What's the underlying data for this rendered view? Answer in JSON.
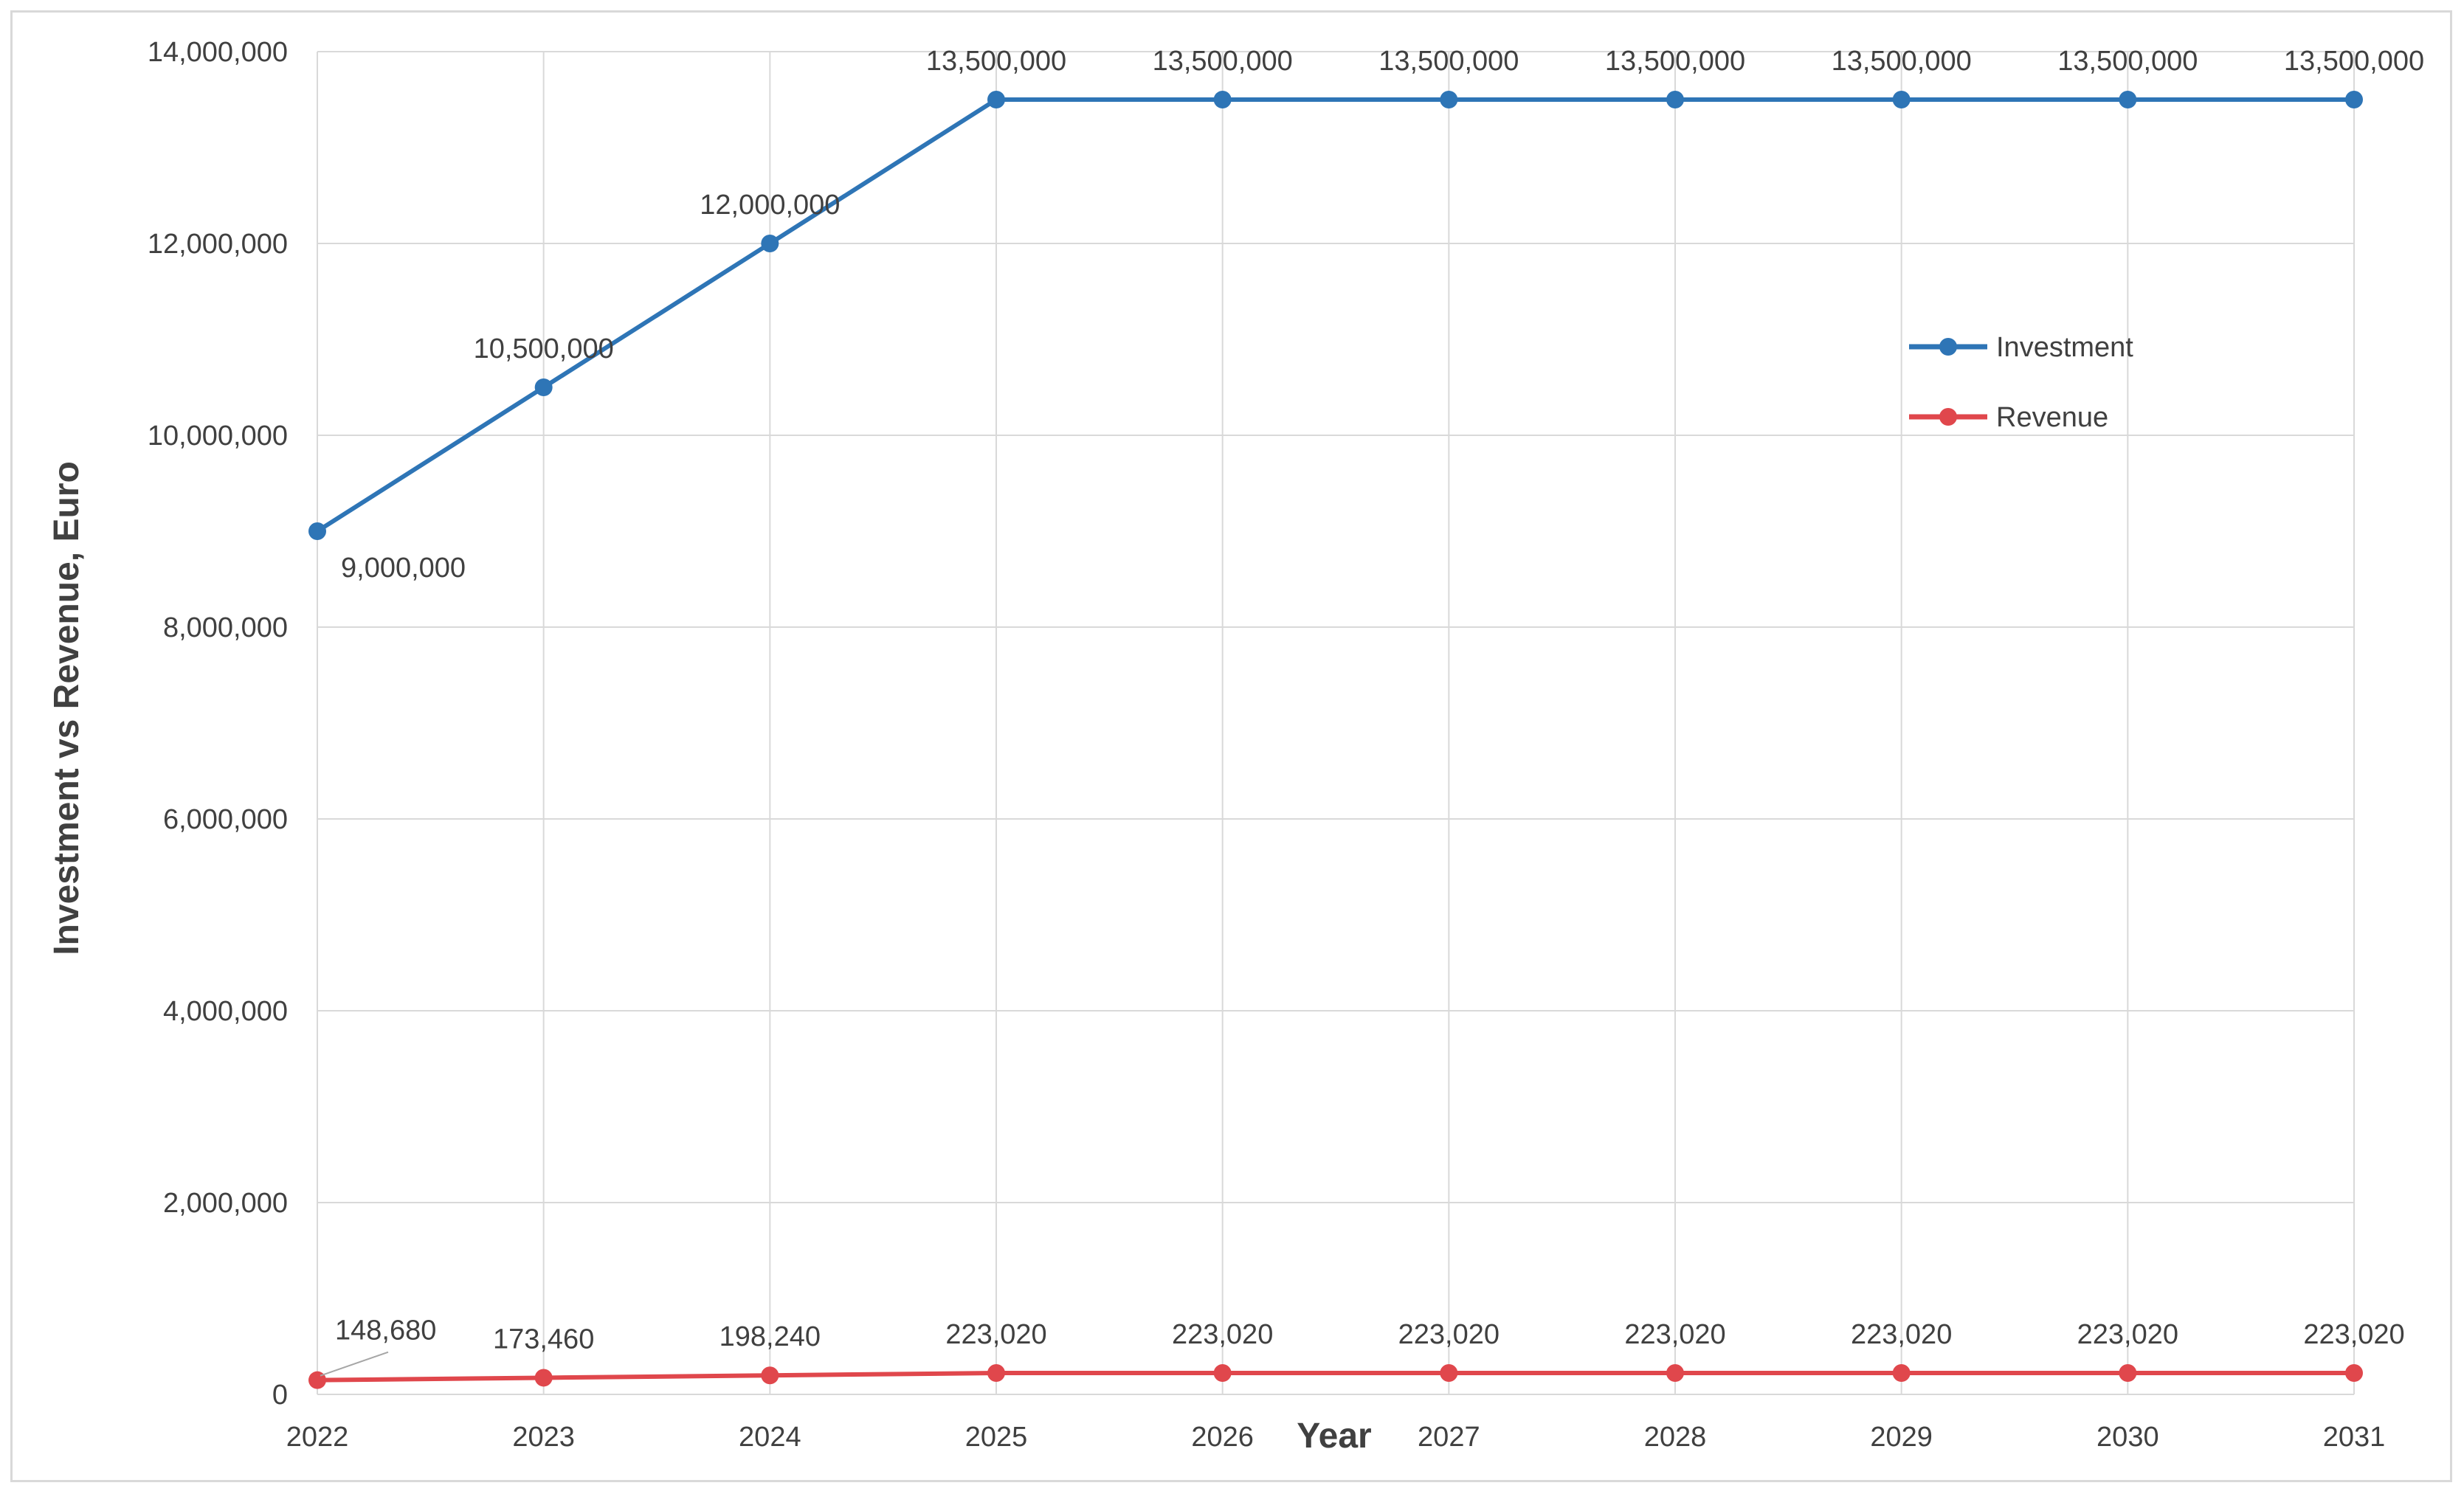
{
  "chart_data": {
    "type": "line",
    "title": "",
    "xlabel": "Year",
    "ylabel": "Investment vs Revenue, Euro",
    "categories": [
      "2022",
      "2023",
      "2024",
      "2025",
      "2026",
      "2027",
      "2028",
      "2029",
      "2030",
      "2031"
    ],
    "ylim": [
      0,
      14000000
    ],
    "yticks": [
      0,
      2000000,
      4000000,
      6000000,
      8000000,
      10000000,
      12000000,
      14000000
    ],
    "ytick_labels": [
      "0",
      "2,000,000",
      "4,000,000",
      "6,000,000",
      "8,000,000",
      "10,000,000",
      "12,000,000",
      "14,000,000"
    ],
    "grid": true,
    "legend_position": "top-right",
    "series": [
      {
        "name": "Investment",
        "color": "#2e75b6",
        "values": [
          9000000,
          10500000,
          12000000,
          13500000,
          13500000,
          13500000,
          13500000,
          13500000,
          13500000,
          13500000
        ],
        "labels": [
          "9,000,000",
          "10,500,000",
          "12,000,000",
          "13,500,000",
          "13,500,000",
          "13,500,000",
          "13,500,000",
          "13,500,000",
          "13,500,000",
          "13,500,000"
        ]
      },
      {
        "name": "Revenue",
        "color": "#e0474c",
        "values": [
          148680,
          173460,
          198240,
          223020,
          223020,
          223020,
          223020,
          223020,
          223020,
          223020
        ],
        "labels": [
          "148,680",
          "173,460",
          "198,240",
          "223,020",
          "223,020",
          "223,020",
          "223,020",
          "223,020",
          "223,020",
          "223,020"
        ]
      }
    ]
  }
}
